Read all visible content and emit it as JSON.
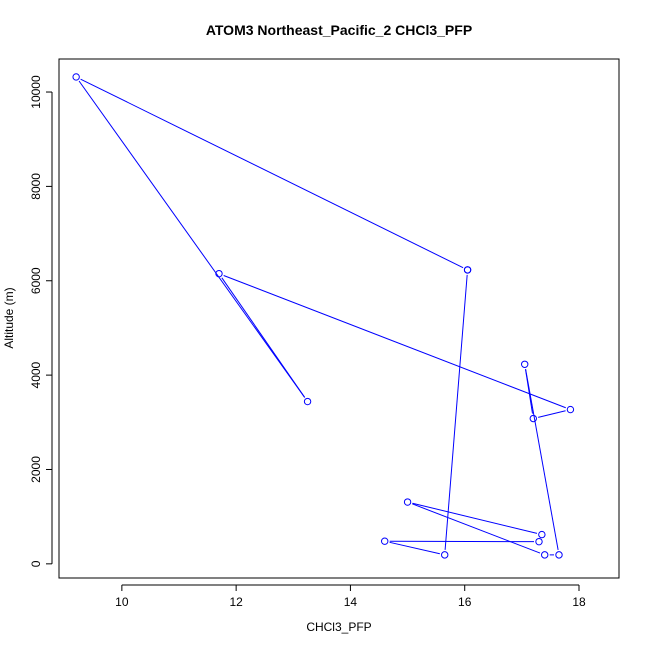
{
  "chart_data": {
    "type": "line",
    "title": "ATOM3 Northeast_Pacific_2 CHCl3_PFP",
    "xlabel": "CHCl3_PFP",
    "ylabel": "Altitude (m)",
    "xlim": [
      8.9,
      18.7
    ],
    "ylim": [
      -300,
      10700
    ],
    "xticks": [
      10,
      12,
      14,
      16,
      18
    ],
    "yticks": [
      0,
      2000,
      4000,
      6000,
      8000,
      10000
    ],
    "grid": false,
    "color": "#0000ff",
    "series": [
      {
        "markers": "open-circle",
        "x": [
          16.05,
          9.2,
          13.25,
          11.7,
          17.85,
          17.2,
          17.05,
          17.65,
          17.4,
          15.0,
          17.35,
          17.3,
          14.6,
          15.65,
          16.05
        ],
        "y": [
          6230,
          10320,
          3440,
          6150,
          3270,
          3080,
          4230,
          190,
          190,
          1310,
          620,
          470,
          480,
          190,
          6230
        ]
      }
    ]
  }
}
